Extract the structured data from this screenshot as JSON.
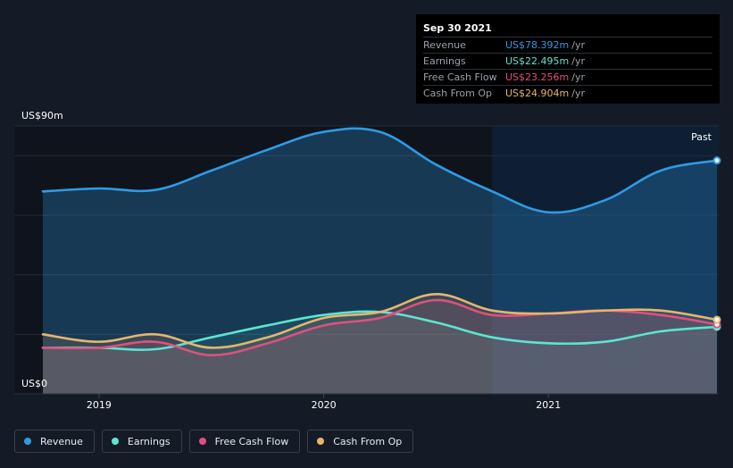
{
  "tooltip": {
    "date": "Sep 30 2021",
    "rows": [
      {
        "label": "Revenue",
        "value": "US$78.392m",
        "unit": "/yr",
        "color": "#2f9be5"
      },
      {
        "label": "Earnings",
        "value": "US$22.495m",
        "unit": "/yr",
        "color": "#5ce5d0"
      },
      {
        "label": "Free Cash Flow",
        "value": "US$23.256m",
        "unit": "/yr",
        "color": "#e0507e"
      },
      {
        "label": "Cash From Op",
        "value": "US$24.904m",
        "unit": "/yr",
        "color": "#e8b56b"
      }
    ]
  },
  "past_label": "Past",
  "legend": [
    {
      "label": "Revenue",
      "color": "#2f9be5"
    },
    {
      "label": "Earnings",
      "color": "#5ce5d0"
    },
    {
      "label": "Free Cash Flow",
      "color": "#e0507e"
    },
    {
      "label": "Cash From Op",
      "color": "#e8b56b"
    }
  ],
  "chart_data": {
    "type": "line",
    "y_top_label": "US$90m",
    "y_bottom_label": "US$0",
    "ylim": [
      0,
      90
    ],
    "xlim": [
      2018.75,
      2021.75
    ],
    "xticks": [
      2019,
      2020,
      2021
    ],
    "xtick_labels": [
      "2019",
      "2020",
      "2021"
    ],
    "past_region_start": 2020.75,
    "grid": true,
    "series": [
      {
        "name": "Revenue",
        "color": "#2f9be5",
        "x": [
          2018.75,
          2019.0,
          2019.25,
          2019.5,
          2019.75,
          2020.0,
          2020.25,
          2020.5,
          2020.75,
          2021.0,
          2021.25,
          2021.5,
          2021.75
        ],
        "y": [
          68,
          69,
          68.5,
          75,
          82,
          88,
          88,
          77,
          68,
          61,
          65,
          75,
          78.4
        ]
      },
      {
        "name": "Earnings",
        "color": "#5ce5d0",
        "x": [
          2018.75,
          2019.0,
          2019.25,
          2019.5,
          2019.75,
          2020.0,
          2020.25,
          2020.5,
          2020.75,
          2021.0,
          2021.25,
          2021.5,
          2021.75
        ],
        "y": [
          15.5,
          15.5,
          15,
          19,
          23,
          26.5,
          27.5,
          24,
          19,
          17,
          17.5,
          21,
          22.5
        ]
      },
      {
        "name": "Free Cash Flow",
        "color": "#e0507e",
        "x": [
          2018.75,
          2019.0,
          2019.25,
          2019.5,
          2019.75,
          2020.0,
          2020.25,
          2020.5,
          2020.75,
          2021.0,
          2021.25,
          2021.5,
          2021.75
        ],
        "y": [
          15.5,
          15.5,
          17.5,
          13,
          17,
          23,
          25.5,
          31.5,
          26.5,
          27,
          28,
          26.5,
          23.3
        ]
      },
      {
        "name": "Cash From Op",
        "color": "#e8b56b",
        "x": [
          2018.75,
          2019.0,
          2019.25,
          2019.5,
          2019.75,
          2020.0,
          2020.25,
          2020.5,
          2020.75,
          2021.0,
          2021.25,
          2021.5,
          2021.75
        ],
        "y": [
          20,
          17.5,
          20,
          15.5,
          19,
          25.5,
          27.5,
          33.5,
          28,
          27,
          28,
          28,
          24.9
        ]
      }
    ]
  }
}
